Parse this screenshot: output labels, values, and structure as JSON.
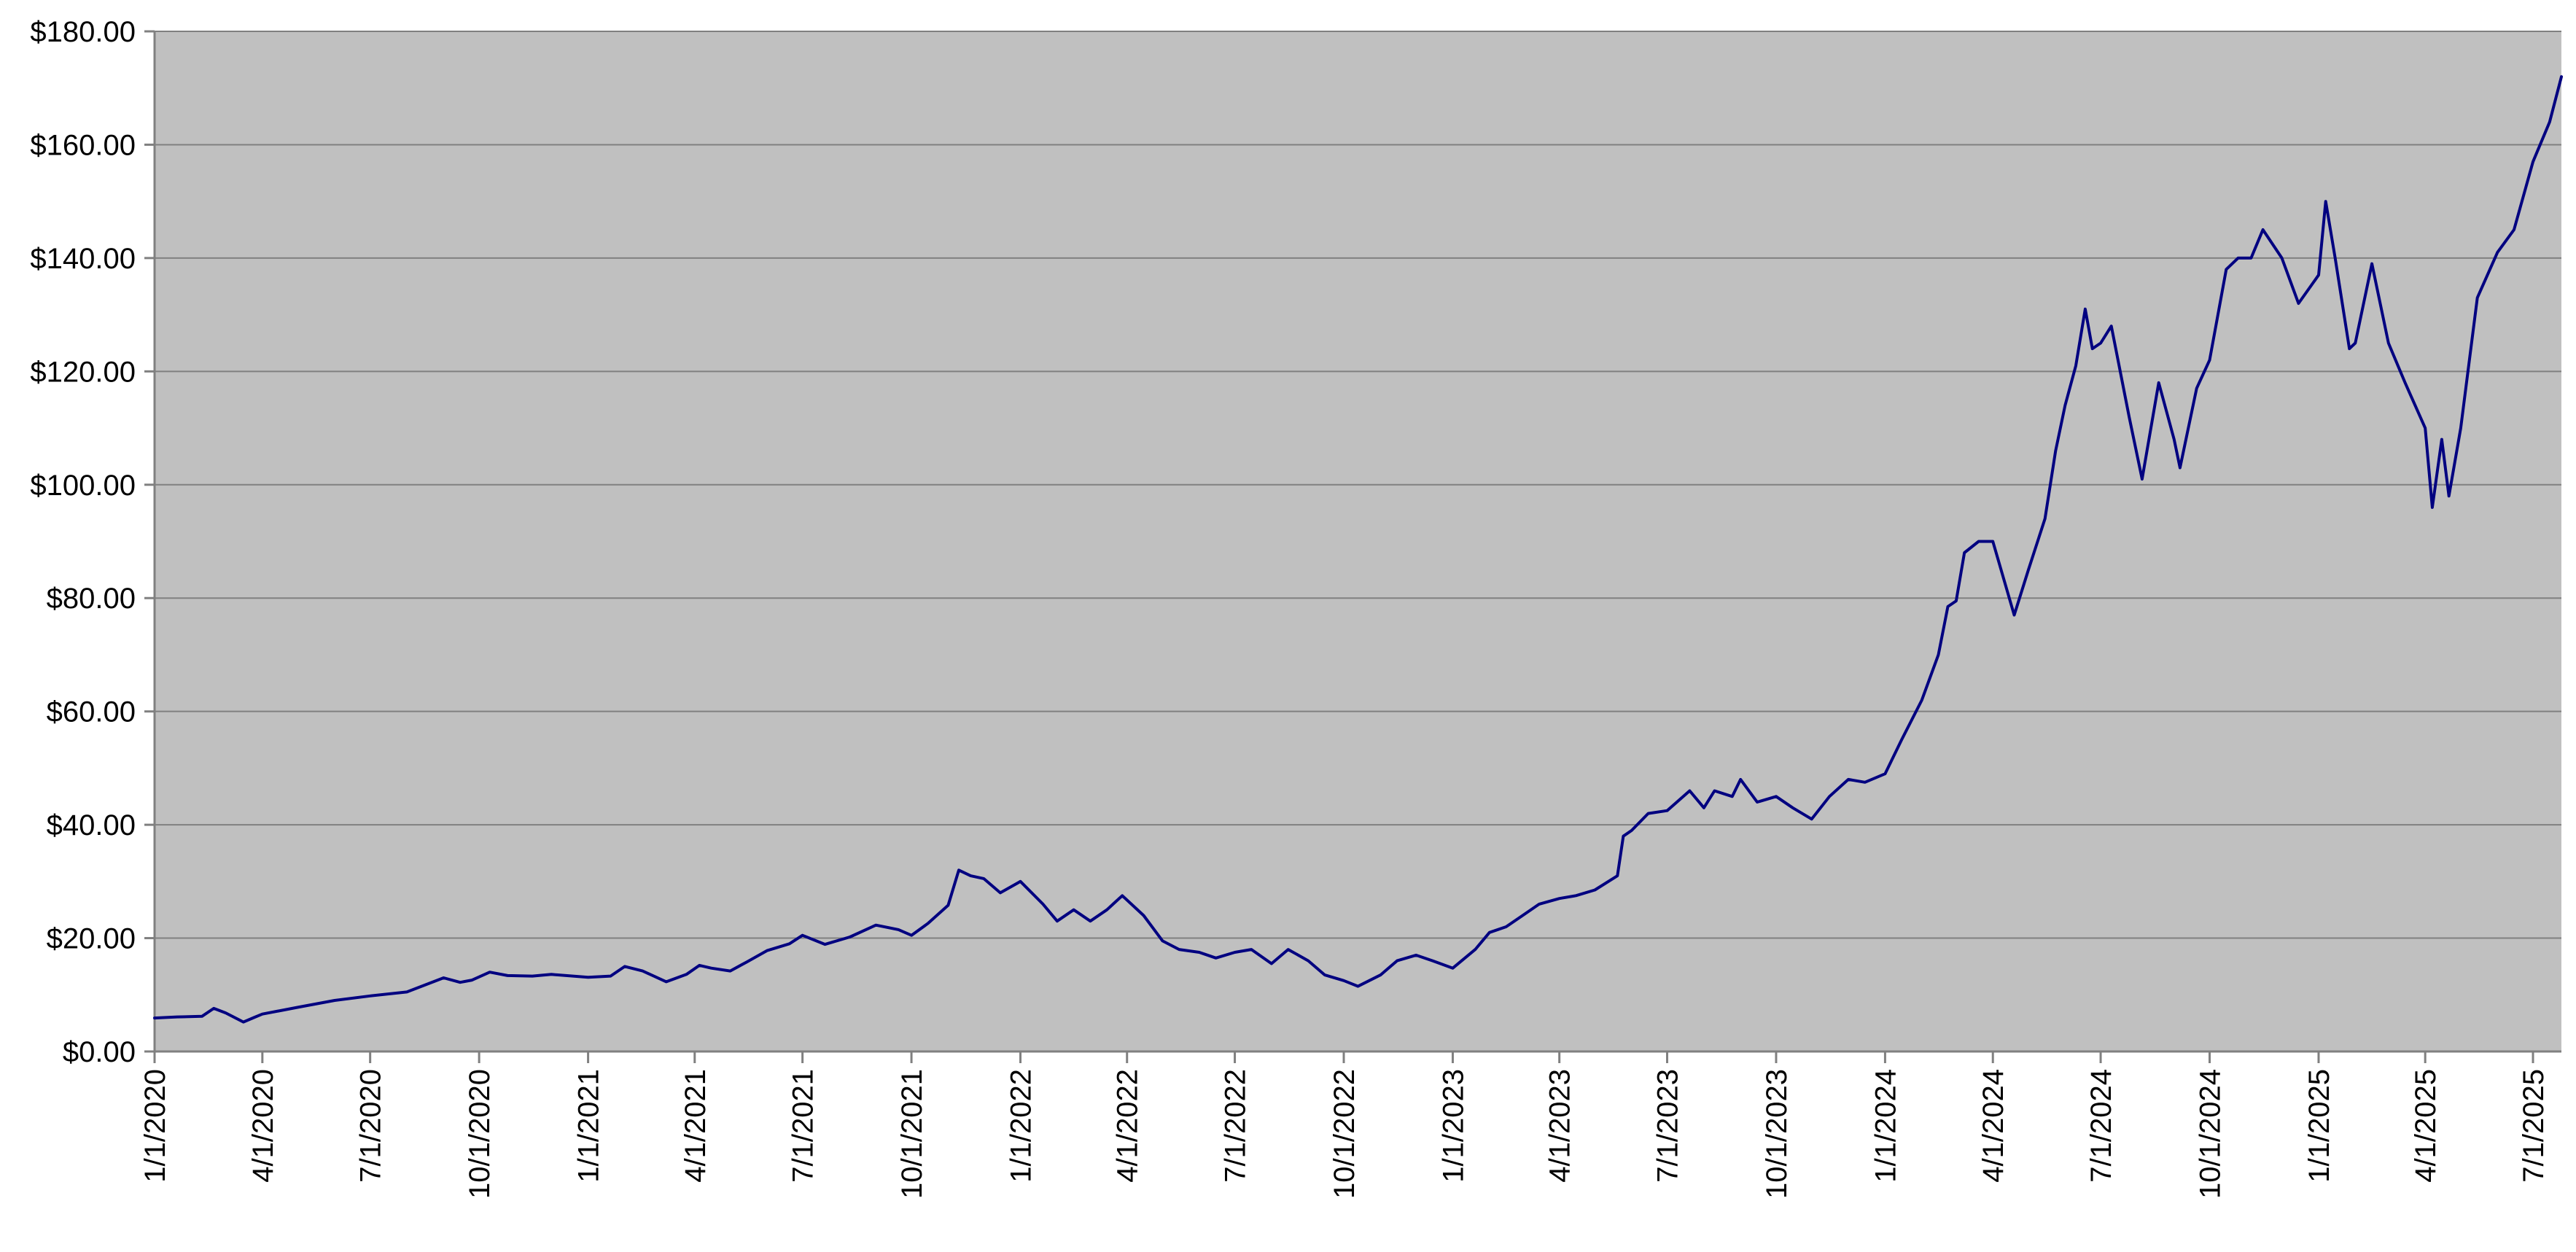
{
  "chart_data": {
    "type": "line",
    "title": "",
    "xlabel": "",
    "ylabel": "",
    "plot_background": "#C0C0C0",
    "line_color": "#000080",
    "grid": true,
    "legend": "none",
    "x_range": [
      "2020-01-01",
      "2025-07-25"
    ],
    "ylim": [
      0,
      180
    ],
    "y_ticks": [
      0,
      20,
      40,
      60,
      80,
      100,
      120,
      140,
      160,
      180
    ],
    "y_tick_labels": [
      "$0.00",
      "$20.00",
      "$40.00",
      "$60.00",
      "$80.00",
      "$100.00",
      "$120.00",
      "$140.00",
      "$160.00",
      "$180.00"
    ],
    "x_ticks": [
      "2020-01-01",
      "2020-04-01",
      "2020-07-01",
      "2020-10-01",
      "2021-01-01",
      "2021-04-01",
      "2021-07-01",
      "2021-10-01",
      "2022-01-01",
      "2022-04-01",
      "2022-07-01",
      "2022-10-01",
      "2023-01-01",
      "2023-04-01",
      "2023-07-01",
      "2023-10-01",
      "2024-01-01",
      "2024-04-01",
      "2024-07-01",
      "2024-10-01",
      "2025-01-01",
      "2025-04-01",
      "2025-07-01"
    ],
    "x_tick_labels": [
      "1/1/2020",
      "4/1/2020",
      "7/1/2020",
      "10/1/2020",
      "1/1/2021",
      "4/1/2021",
      "7/1/2021",
      "10/1/2021",
      "1/1/2022",
      "4/1/2022",
      "7/1/2022",
      "10/1/2022",
      "1/1/2023",
      "4/1/2023",
      "7/1/2023",
      "10/1/2023",
      "1/1/2024",
      "4/1/2024",
      "7/1/2024",
      "10/1/2024",
      "1/1/2025",
      "4/1/2025",
      "7/1/2025"
    ],
    "series": [
      {
        "x": [
          "2020-01-01",
          "2020-01-20",
          "2020-02-10",
          "2020-02-20",
          "2020-03-01",
          "2020-03-16",
          "2020-03-25",
          "2020-04-01",
          "2020-05-01",
          "2020-06-01",
          "2020-07-01",
          "2020-08-01",
          "2020-09-01",
          "2020-09-15",
          "2020-09-25",
          "2020-10-10",
          "2020-10-25",
          "2020-11-15",
          "2020-12-01",
          "2021-01-01",
          "2021-01-20",
          "2021-02-01",
          "2021-02-16",
          "2021-03-08",
          "2021-03-25",
          "2021-04-05",
          "2021-04-15",
          "2021-05-01",
          "2021-05-15",
          "2021-06-01",
          "2021-06-20",
          "2021-07-01",
          "2021-07-20",
          "2021-08-10",
          "2021-09-01",
          "2021-09-20",
          "2021-10-01",
          "2021-10-15",
          "2021-11-01",
          "2021-11-10",
          "2021-11-20",
          "2021-12-01",
          "2021-12-15",
          "2022-01-01",
          "2022-01-20",
          "2022-02-01",
          "2022-02-15",
          "2022-03-01",
          "2022-03-15",
          "2022-03-28",
          "2022-04-15",
          "2022-05-01",
          "2022-05-15",
          "2022-06-01",
          "2022-06-15",
          "2022-07-01",
          "2022-07-15",
          "2022-08-01",
          "2022-08-15",
          "2022-09-01",
          "2022-09-15",
          "2022-10-01",
          "2022-10-13",
          "2022-11-01",
          "2022-11-15",
          "2022-12-01",
          "2022-12-15",
          "2023-01-01",
          "2023-01-20",
          "2023-02-01",
          "2023-02-15",
          "2023-03-01",
          "2023-03-15",
          "2023-04-01",
          "2023-04-15",
          "2023-05-01",
          "2023-05-20",
          "2023-05-25",
          "2023-06-01",
          "2023-06-15",
          "2023-07-01",
          "2023-07-20",
          "2023-08-01",
          "2023-08-10",
          "2023-08-25",
          "2023-09-01",
          "2023-09-15",
          "2023-10-01",
          "2023-10-15",
          "2023-10-31",
          "2023-11-15",
          "2023-12-01",
          "2023-12-15",
          "2024-01-01",
          "2024-01-15",
          "2024-02-01",
          "2024-02-15",
          "2024-02-23",
          "2024-03-01",
          "2024-03-08",
          "2024-03-20",
          "2024-04-01",
          "2024-04-19",
          "2024-05-01",
          "2024-05-15",
          "2024-05-24",
          "2024-06-01",
          "2024-06-10",
          "2024-06-18",
          "2024-06-24",
          "2024-07-01",
          "2024-07-10",
          "2024-07-25",
          "2024-08-05",
          "2024-08-19",
          "2024-09-01",
          "2024-09-06",
          "2024-09-20",
          "2024-10-01",
          "2024-10-15",
          "2024-10-25",
          "2024-11-05",
          "2024-11-15",
          "2024-12-01",
          "2024-12-15",
          "2025-01-01",
          "2025-01-07",
          "2025-01-15",
          "2025-01-27",
          "2025-02-01",
          "2025-02-15",
          "2025-03-01",
          "2025-03-15",
          "2025-04-01",
          "2025-04-07",
          "2025-04-15",
          "2025-04-21",
          "2025-05-01",
          "2025-05-15",
          "2025-06-01",
          "2025-06-15",
          "2025-07-01",
          "2025-07-15",
          "2025-07-25"
        ],
        "y": [
          5.9,
          6.1,
          6.2,
          7.6,
          6.8,
          5.2,
          6.0,
          6.6,
          7.8,
          9.0,
          9.8,
          10.5,
          13.0,
          12.2,
          12.6,
          14.0,
          13.4,
          13.3,
          13.6,
          13.1,
          13.3,
          15.0,
          14.2,
          12.3,
          13.6,
          15.2,
          14.7,
          14.2,
          15.8,
          17.8,
          19.0,
          20.5,
          18.9,
          20.2,
          22.3,
          21.5,
          20.5,
          22.6,
          25.8,
          32.0,
          31.0,
          30.5,
          28.0,
          30.0,
          26.0,
          23.0,
          25.0,
          23.0,
          25.0,
          27.5,
          24.0,
          19.5,
          18.0,
          17.5,
          16.5,
          17.5,
          18.0,
          15.5,
          18.0,
          16.0,
          13.5,
          12.5,
          11.5,
          13.5,
          16.0,
          17.0,
          16.0,
          14.7,
          18.0,
          21.0,
          22.0,
          24.0,
          26.0,
          27.0,
          27.5,
          28.5,
          31.0,
          38.0,
          39.0,
          42.0,
          42.5,
          46.0,
          43.0,
          46.0,
          45.0,
          48.0,
          44.0,
          45.0,
          43.0,
          41.0,
          45.0,
          48.0,
          47.5,
          49.0,
          55.0,
          62.0,
          70.0,
          78.5,
          79.5,
          88.0,
          90.0,
          90.0,
          77.0,
          85.0,
          94.0,
          106.0,
          114.0,
          121.0,
          131.0,
          124.0,
          125.0,
          128.0,
          112.0,
          101.0,
          118.0,
          108.0,
          103.0,
          117.0,
          122.0,
          138.0,
          140.0,
          140.0,
          145.0,
          140.0,
          132.0,
          137.0,
          150.0,
          140.0,
          124.0,
          125.0,
          139.0,
          125.0,
          118.0,
          110.0,
          96.0,
          108.0,
          98.0,
          110.0,
          133.0,
          141.0,
          145.0,
          157.0,
          164.0,
          172.0
        ]
      }
    ]
  }
}
